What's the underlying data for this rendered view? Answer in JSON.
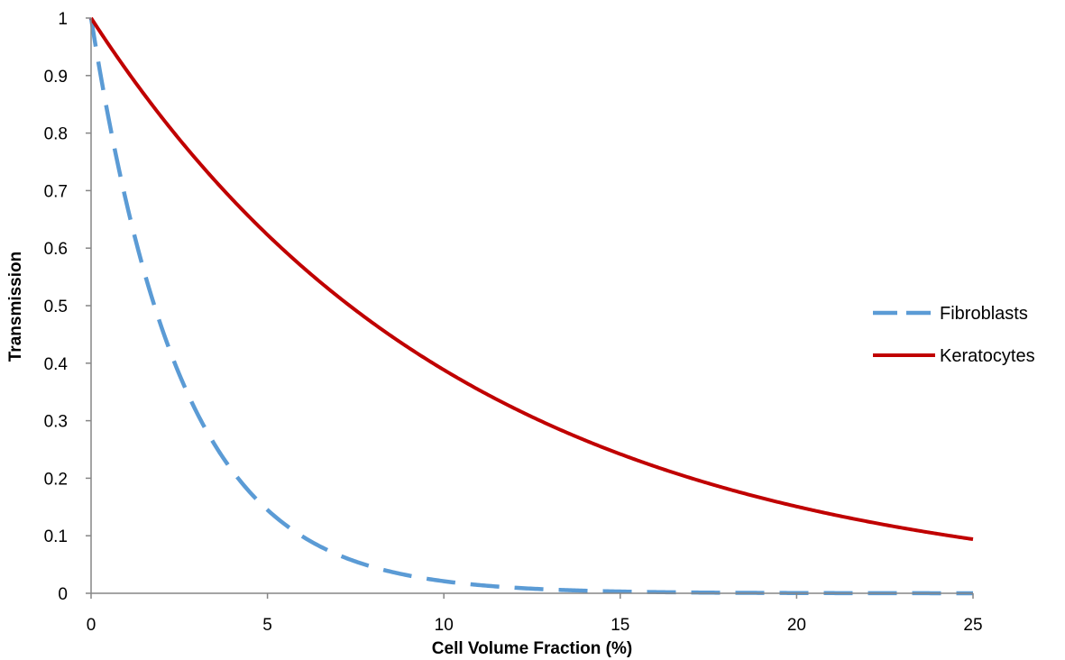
{
  "chart_data": {
    "type": "line",
    "title": "",
    "xlabel": "Cell Volume Fraction (%)",
    "ylabel": "Transmission",
    "xlim": [
      0,
      25
    ],
    "ylim": [
      0,
      1
    ],
    "x_ticks": [
      0,
      5,
      10,
      15,
      20,
      25
    ],
    "y_ticks": [
      0,
      0.1,
      0.2,
      0.3,
      0.4,
      0.5,
      0.6,
      0.7,
      0.8,
      0.9,
      1
    ],
    "grid": false,
    "legend_position": "right",
    "series": [
      {
        "name": "Fibroblasts",
        "color": "#5B9BD5",
        "style": "dashed",
        "x": [
          0,
          1,
          2,
          3,
          4,
          5,
          6,
          7,
          8,
          9,
          10,
          11,
          12,
          13,
          14,
          15,
          16,
          17,
          18,
          19,
          20,
          21,
          22,
          23,
          24,
          25
        ],
        "y": [
          1,
          0.68,
          0.46,
          0.31,
          0.21,
          0.145,
          0.098,
          0.067,
          0.045,
          0.031,
          0.021,
          0.014,
          0.0097,
          0.0066,
          0.0045,
          0.003,
          0.0021,
          0.0014,
          0.00095,
          0.00065,
          0.00044,
          0.0003,
          0.0002,
          0.00014,
          9.4e-05,
          6.4e-05
        ]
      },
      {
        "name": "Keratocytes",
        "color": "#C00000",
        "style": "solid",
        "x": [
          0,
          1,
          2,
          3,
          4,
          5,
          6,
          7,
          8,
          9,
          10,
          11,
          12,
          13,
          14,
          15,
          16,
          17,
          18,
          19,
          20,
          21,
          22,
          23,
          24,
          25
        ],
        "y": [
          1,
          0.91,
          0.83,
          0.75,
          0.685,
          0.623,
          0.567,
          0.516,
          0.469,
          0.427,
          0.388,
          0.353,
          0.322,
          0.293,
          0.266,
          0.242,
          0.22,
          0.201,
          0.183,
          0.166,
          0.151,
          0.138,
          0.125,
          0.114,
          0.104,
          0.094
        ]
      }
    ]
  }
}
